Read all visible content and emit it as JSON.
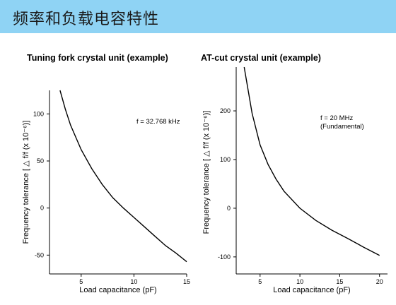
{
  "header": {
    "title": "频率和负载电容特性"
  },
  "chart_data": [
    {
      "type": "line",
      "title": "Tuning fork crystal unit (example)",
      "xlabel": "Load capacitance (pF)",
      "ylabel": "Frequency tolerance [ △ f/f (x 10⁻⁶)]",
      "annotation": "f = 32.768 kHz",
      "xlim": [
        2,
        15
      ],
      "ylim": [
        -70,
        125
      ],
      "xticks": [
        5,
        10,
        15
      ],
      "yticks": [
        -50,
        0,
        50,
        100
      ],
      "x": [
        3,
        3.5,
        4,
        5,
        6,
        7,
        8,
        9,
        10,
        11,
        12,
        13,
        14,
        15
      ],
      "series": [
        {
          "values": [
            125,
            105,
            88,
            62,
            42,
            25,
            11,
            0,
            -10,
            -20,
            -30,
            -40,
            -48,
            -57
          ]
        }
      ]
    },
    {
      "type": "line",
      "title": "AT-cut crystal unit (example)",
      "xlabel": "Load capacitance (pF)",
      "ylabel": "Frequency tolerance [ △ f/f (x 10⁻⁶)]",
      "annotation": [
        "f = 20 MHz",
        "(Fundamental)"
      ],
      "xlim": [
        2,
        21
      ],
      "ylim": [
        -135,
        290
      ],
      "xticks": [
        5,
        10,
        15,
        20
      ],
      "yticks": [
        -100,
        0,
        100,
        200
      ],
      "x": [
        3,
        4,
        5,
        6,
        7,
        8,
        10,
        12,
        14,
        16,
        18,
        20
      ],
      "series": [
        {
          "values": [
            290,
            195,
            130,
            90,
            60,
            35,
            0,
            -25,
            -45,
            -62,
            -80,
            -97
          ]
        }
      ]
    }
  ]
}
